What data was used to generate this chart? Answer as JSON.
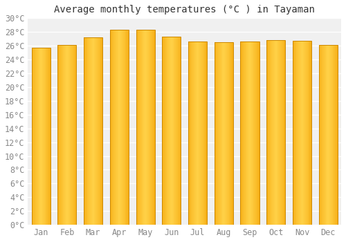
{
  "title": "Average monthly temperatures (°C ) in Tayaman",
  "months": [
    "Jan",
    "Feb",
    "Mar",
    "Apr",
    "May",
    "Jun",
    "Jul",
    "Aug",
    "Sep",
    "Oct",
    "Nov",
    "Dec"
  ],
  "values": [
    25.7,
    26.1,
    27.2,
    28.3,
    28.3,
    27.3,
    26.6,
    26.5,
    26.6,
    26.8,
    26.7,
    26.1
  ],
  "bar_color_center": "#FFD04A",
  "bar_color_edge": "#F5A800",
  "bar_outline_color": "#CC8800",
  "background_color": "#ffffff",
  "plot_bg_color": "#f0f0f0",
  "ylim": [
    0,
    30
  ],
  "ytick_step": 2,
  "title_fontsize": 10,
  "tick_fontsize": 8.5,
  "grid_color": "#ffffff",
  "bar_width": 0.72
}
